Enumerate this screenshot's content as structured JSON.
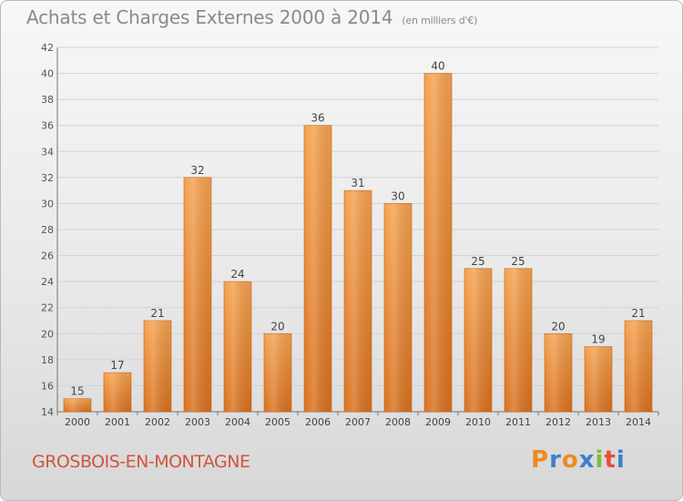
{
  "header": {
    "title": "Achats et Charges Externes 2000 à 2014",
    "subtitle": "(en milliers d'€)"
  },
  "footer": {
    "town": "GROSBOIS-EN-MONTAGNE",
    "brand": "Proxiti"
  },
  "colors": {
    "bar_top": "#f5a24f",
    "bar_bottom": "#d9701e",
    "town_text": "#d1543e",
    "title_text": "#8a8a8a",
    "logo_letters": [
      "#f08a1d",
      "#3f7fcc",
      "#f08a1d",
      "#3f7fcc",
      "#7bbf3a",
      "#e84d3c",
      "#3f7fcc"
    ]
  },
  "chart_data": {
    "type": "bar",
    "title": "Achats et Charges Externes 2000 à 2014",
    "subtitle": "(en milliers d'€)",
    "categories": [
      "2000",
      "2001",
      "2002",
      "2003",
      "2004",
      "2005",
      "2006",
      "2007",
      "2008",
      "2009",
      "2010",
      "2011",
      "2012",
      "2013",
      "2014"
    ],
    "values": [
      15,
      17,
      21,
      32,
      24,
      20,
      36,
      31,
      30,
      40,
      25,
      25,
      20,
      19,
      21
    ],
    "ylim": [
      14,
      42
    ],
    "yticks": [
      14,
      16,
      18,
      20,
      22,
      24,
      26,
      28,
      30,
      32,
      34,
      36,
      38,
      40,
      42
    ],
    "grid": true,
    "data_labels": true
  }
}
